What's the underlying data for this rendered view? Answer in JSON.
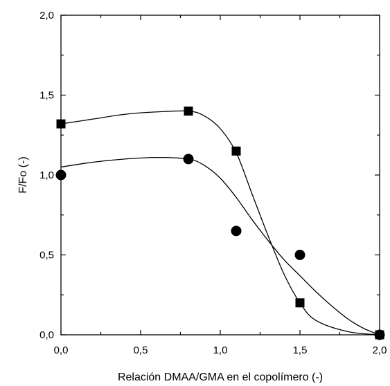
{
  "chart_data": {
    "type": "scatter",
    "title": "",
    "xlabel": "Relación DMAA/GMA en el copolímero (-)",
    "ylabel": "F/Fo (-)",
    "xlim": [
      0,
      2
    ],
    "ylim": [
      0,
      2
    ],
    "x_ticks": [
      "0,0",
      "0,5",
      "1,0",
      "1,5",
      "2,0"
    ],
    "y_ticks": [
      "0,0",
      "0,5",
      "1,0",
      "1,5",
      "2,0"
    ],
    "x_tick_values": [
      0,
      0.5,
      1,
      1.5,
      2
    ],
    "y_tick_values": [
      0,
      0.5,
      1,
      1.5,
      2
    ],
    "minor_tick_step": 0.25,
    "grid": false,
    "legend": "none",
    "series": [
      {
        "marker": "square",
        "color": "#000000",
        "points": [
          {
            "x": 0.0,
            "y": 1.32
          },
          {
            "x": 0.8,
            "y": 1.4
          },
          {
            "x": 1.1,
            "y": 1.15
          },
          {
            "x": 1.5,
            "y": 0.2
          },
          {
            "x": 2.0,
            "y": 0.0
          }
        ],
        "fit_curve": [
          [
            0.0,
            1.32
          ],
          [
            0.2,
            1.35
          ],
          [
            0.4,
            1.38
          ],
          [
            0.6,
            1.395
          ],
          [
            0.8,
            1.4
          ],
          [
            0.9,
            1.37
          ],
          [
            1.0,
            1.29
          ],
          [
            1.1,
            1.14
          ],
          [
            1.2,
            0.88
          ],
          [
            1.3,
            0.62
          ],
          [
            1.4,
            0.38
          ],
          [
            1.5,
            0.2
          ],
          [
            1.6,
            0.09
          ],
          [
            1.8,
            0.02
          ],
          [
            2.0,
            0.0
          ]
        ]
      },
      {
        "marker": "circle",
        "color": "#000000",
        "points": [
          {
            "x": 0.0,
            "y": 1.0
          },
          {
            "x": 0.8,
            "y": 1.1
          },
          {
            "x": 1.1,
            "y": 0.65
          },
          {
            "x": 1.5,
            "y": 0.5
          },
          {
            "x": 2.0,
            "y": 0.0
          }
        ],
        "fit_curve": [
          [
            0.0,
            1.05
          ],
          [
            0.2,
            1.08
          ],
          [
            0.4,
            1.1
          ],
          [
            0.6,
            1.11
          ],
          [
            0.8,
            1.1
          ],
          [
            0.9,
            1.06
          ],
          [
            1.0,
            0.98
          ],
          [
            1.1,
            0.86
          ],
          [
            1.2,
            0.72
          ],
          [
            1.3,
            0.59
          ],
          [
            1.4,
            0.47
          ],
          [
            1.5,
            0.37
          ],
          [
            1.6,
            0.27
          ],
          [
            1.7,
            0.18
          ],
          [
            1.8,
            0.1
          ],
          [
            1.9,
            0.04
          ],
          [
            2.0,
            0.0
          ]
        ]
      }
    ]
  }
}
